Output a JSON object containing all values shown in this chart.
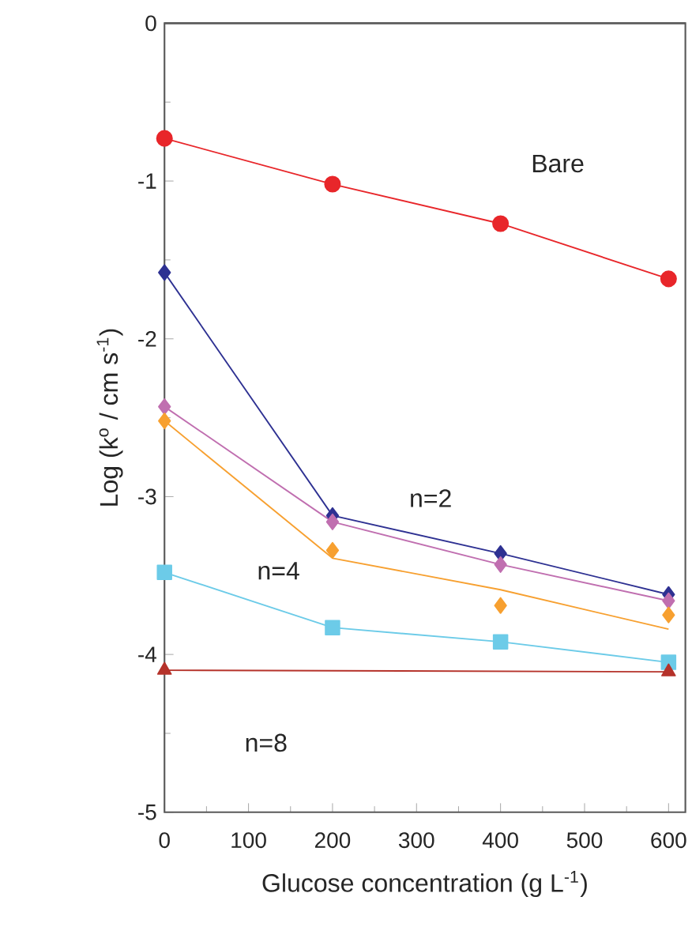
{
  "chart_data": {
    "type": "line",
    "xlabel": "Glucose concentration (g L$^{-1}$)",
    "ylabel": "Log (k$^{o}$ / cm s$^{-1}$)",
    "xlim": [
      0,
      620
    ],
    "ylim": [
      -5,
      0
    ],
    "xticks": [
      0,
      100,
      200,
      300,
      400,
      500,
      600
    ],
    "yticks": [
      -5,
      -4,
      -3,
      -2,
      -1,
      0
    ],
    "x": [
      0,
      200,
      400,
      600
    ],
    "series": [
      {
        "color": "#e8262a",
        "marker": "circle",
        "values": [
          -0.73,
          -1.02,
          -1.27,
          -1.62
        ]
      },
      {
        "color": "#2e3192",
        "marker": "diamond",
        "values": [
          -1.58,
          -3.12,
          -3.36,
          -3.62
        ]
      },
      {
        "color": "#c06fb0",
        "marker": "diamond",
        "values": [
          -2.43,
          -3.16,
          -3.43,
          -3.66
        ]
      },
      {
        "type": "scatter",
        "color": "#f7a030",
        "marker": "diamond",
        "values": [
          -2.52,
          -3.34,
          -3.69,
          -3.75
        ]
      },
      {
        "color": "#f7a030",
        "marker": "none",
        "values": [
          -2.52,
          -3.39,
          -3.59,
          -3.84
        ]
      },
      {
        "color": "#6ccbe8",
        "marker": "square",
        "values": [
          -3.48,
          -3.83,
          -3.92,
          -4.05
        ]
      },
      {
        "color": "#b5322a",
        "marker": "triangle",
        "x": [
          0,
          600
        ],
        "values": [
          -4.1,
          -4.11
        ]
      }
    ],
    "annotations": [
      "Bare",
      "n=2",
      "n=4",
      "n=8"
    ]
  }
}
